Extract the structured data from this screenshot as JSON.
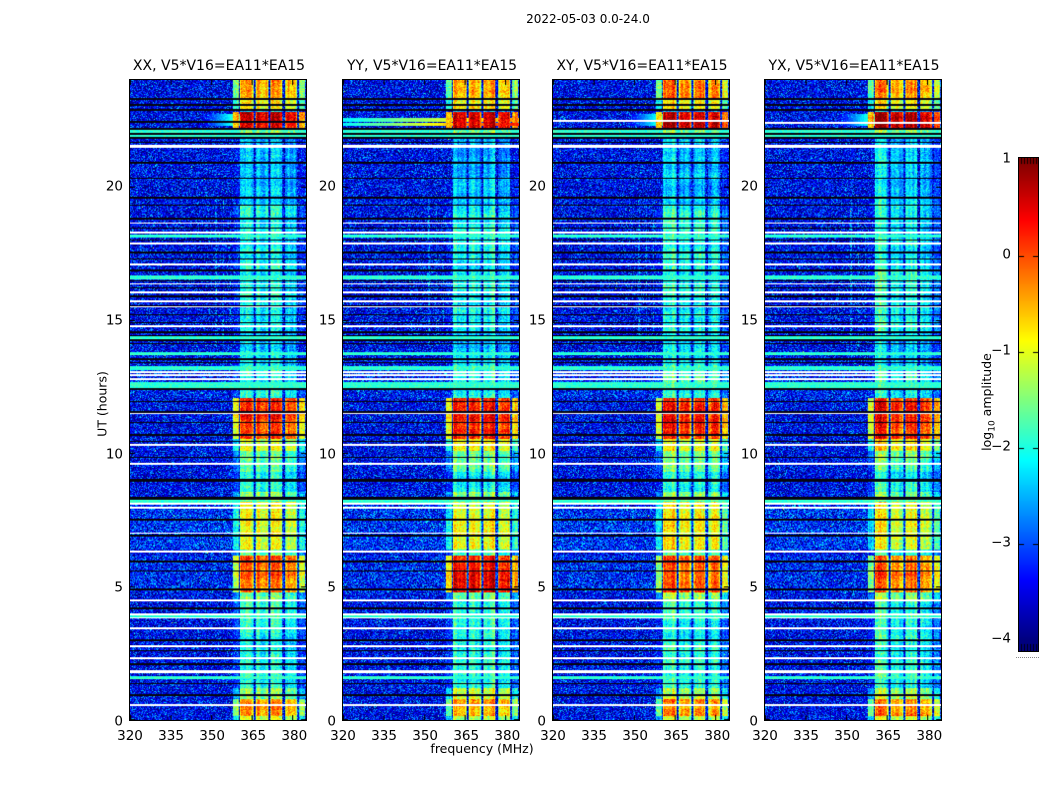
{
  "figure": {
    "suptitle": "2022-05-03 0.0-24.0"
  },
  "chart_data": {
    "type": "heatmap",
    "title": "2022-05-03 0.0-24.0",
    "xlabel": "frequency (MHz)",
    "ylabel": "UT (hours)",
    "x_range": [
      320,
      385
    ],
    "x_ticks": [
      320,
      335,
      350,
      365,
      380
    ],
    "y_range": [
      0,
      24
    ],
    "y_ticks": [
      0,
      5,
      10,
      15,
      20
    ],
    "value_range": [
      -4,
      1
    ],
    "colormap": "jet",
    "colorbar": {
      "label": "log10 amplitude",
      "label_parts": {
        "pre": "log",
        "sub": "10",
        "post": " amplitude"
      },
      "ticks": [
        1,
        0,
        -1,
        -2,
        -3,
        -4
      ]
    },
    "panels": [
      {
        "title": "XX, V5*V16=EA11*EA15",
        "seed": 101,
        "extras": [
          {
            "type": "blob",
            "t": [
              22.28,
              22.74
            ],
            "f": [
              347,
              360.4
            ],
            "level": -1.55,
            "fade": 0.15
          },
          {
            "type": "hline",
            "color": "black",
            "t": 22.42,
            "w": 2
          }
        ]
      },
      {
        "title": "YY, V5*V16=EA11*EA15",
        "seed": 202,
        "boost": [
          4.78,
          6.15,
          0.5
        ],
        "extras": [
          {
            "type": "streak",
            "t": [
              22.44,
              22.58
            ],
            "level": -0.35,
            "fade": 0.028
          },
          {
            "type": "streak",
            "t": [
              22.28,
              22.41
            ],
            "level": 0.3,
            "fade": 0.038
          }
        ]
      },
      {
        "title": "XY, V5*V16=EA11*EA15",
        "seed": 303,
        "extras": [
          {
            "type": "blob",
            "t": [
              22.28,
              22.74
            ],
            "f": [
              347,
              360.4
            ],
            "level": -1.7,
            "fade": 0.15
          },
          {
            "type": "hline",
            "color": "white",
            "t": 22.46,
            "w": 2
          }
        ]
      },
      {
        "title": "YX, V5*V16=EA11*EA15",
        "seed": 404,
        "extras": [
          {
            "type": "blob",
            "t": [
              22.28,
              22.74
            ],
            "f": [
              347,
              360.4
            ],
            "level": -1.6,
            "fade": 0.15
          },
          {
            "type": "hline",
            "color": "white",
            "t": 22.4,
            "w": 2
          }
        ]
      }
    ],
    "background": {
      "mean": -3.45,
      "sigma": 1.3,
      "speckle_prob": 0.004,
      "speckle_add": 1.2,
      "boosts": [
        [
          6.4,
          8.2,
          0.25
        ],
        [
          4.78,
          6.15,
          0.18
        ],
        [
          12.08,
          13.3,
          0.15
        ]
      ]
    },
    "rfi_band": {
      "substripes": [
        [
          357.8,
          360.2
        ],
        [
          360.4,
          365.6
        ],
        [
          366.4,
          371.0
        ],
        [
          371.8,
          376.4
        ],
        [
          377.2,
          381.8
        ],
        [
          382.6,
          384.8
        ]
      ],
      "stripe_offsets": [
        -1.1,
        0.15,
        -0.05,
        0.05,
        -0.12,
        -0.95
      ],
      "quiet_level": -2.55
    },
    "band_events": [
      [
        23.3,
        24.0,
        -0.4
      ],
      [
        22.85,
        23.25,
        -0.85
      ],
      [
        22.22,
        22.82,
        0.55
      ],
      [
        21.95,
        22.2,
        -1.55
      ],
      [
        19.3,
        21.9,
        -2.45
      ],
      [
        14.5,
        19.3,
        -2.1
      ],
      [
        13.3,
        14.5,
        -2.35
      ],
      [
        12.08,
        13.3,
        -2.05
      ],
      [
        10.55,
        12.08,
        0.15
      ],
      [
        10.1,
        10.55,
        -0.95
      ],
      [
        9.3,
        10.1,
        -1.7
      ],
      [
        8.55,
        9.3,
        -2.1
      ],
      [
        8.22,
        8.55,
        -1.5
      ],
      [
        6.4,
        8.2,
        -1.0
      ],
      [
        6.15,
        6.4,
        -1.8
      ],
      [
        4.78,
        6.15,
        -0.15
      ],
      [
        4.5,
        4.78,
        -1.6
      ],
      [
        3.8,
        4.5,
        -1.95
      ],
      [
        1.2,
        3.8,
        -2.05
      ],
      [
        0.78,
        1.2,
        -1.35
      ],
      [
        0.15,
        0.78,
        -0.45
      ],
      [
        0.0,
        0.15,
        -1.3
      ]
    ],
    "row_lines": {
      "white": [
        [
          21.5,
          3
        ],
        [
          18.65,
          1
        ],
        [
          18.28,
          2
        ],
        [
          17.87,
          2
        ],
        [
          17.08,
          2
        ],
        [
          16.34,
          1
        ],
        [
          16.04,
          2
        ],
        [
          15.7,
          2
        ],
        [
          15.48,
          1
        ],
        [
          14.77,
          2
        ],
        [
          13.05,
          2
        ],
        [
          12.92,
          2
        ],
        [
          12.78,
          2
        ],
        [
          11.5,
          1
        ],
        [
          10.3,
          2
        ],
        [
          9.6,
          2
        ],
        [
          8.1,
          2
        ],
        [
          7.97,
          2
        ],
        [
          7.0,
          1
        ],
        [
          6.3,
          2
        ],
        [
          4.5,
          2
        ],
        [
          3.95,
          2
        ],
        [
          3.85,
          1
        ],
        [
          3.45,
          2
        ],
        [
          2.75,
          2
        ],
        [
          2.3,
          2
        ],
        [
          1.85,
          2
        ],
        [
          1.78,
          1
        ],
        [
          0.55,
          2
        ]
      ],
      "black": [
        [
          23.28,
          2
        ],
        [
          23.05,
          2
        ],
        [
          22.88,
          2
        ],
        [
          22.18,
          2
        ],
        [
          21.98,
          2
        ],
        [
          21.82,
          2
        ],
        [
          21.68,
          1
        ],
        [
          20.9,
          2
        ],
        [
          20.3,
          1
        ],
        [
          19.6,
          2
        ],
        [
          19.3,
          1
        ],
        [
          18.8,
          2
        ],
        [
          18.45,
          1
        ],
        [
          18.0,
          1
        ],
        [
          17.55,
          2
        ],
        [
          17.3,
          1
        ],
        [
          16.85,
          2
        ],
        [
          16.45,
          1
        ],
        [
          16.2,
          1
        ],
        [
          15.9,
          2
        ],
        [
          15.55,
          1
        ],
        [
          15.2,
          1
        ],
        [
          14.9,
          1
        ],
        [
          14.55,
          2
        ],
        [
          14.4,
          1
        ],
        [
          14.25,
          2
        ],
        [
          14.1,
          1
        ],
        [
          13.55,
          2
        ],
        [
          13.4,
          1
        ],
        [
          12.42,
          2
        ],
        [
          11.95,
          1
        ],
        [
          11.55,
          2
        ],
        [
          11.15,
          1
        ],
        [
          10.7,
          2
        ],
        [
          10.45,
          1
        ],
        [
          9.85,
          1
        ],
        [
          9.0,
          3
        ],
        [
          8.3,
          3
        ],
        [
          7.5,
          2
        ],
        [
          6.9,
          2
        ],
        [
          5.95,
          2
        ],
        [
          5.6,
          1
        ],
        [
          4.9,
          2
        ],
        [
          4.2,
          2
        ],
        [
          3.0,
          2
        ],
        [
          2.6,
          1
        ],
        [
          2.1,
          2
        ],
        [
          1.35,
          1
        ],
        [
          0.95,
          2
        ]
      ],
      "cyan": [
        [
          22.08,
          4
        ],
        [
          21.92,
          3
        ],
        [
          18.15,
          3
        ],
        [
          16.6,
          4
        ],
        [
          14.32,
          3
        ],
        [
          13.75,
          3
        ],
        [
          13.2,
          4
        ],
        [
          12.62,
          3
        ],
        [
          12.5,
          3
        ],
        [
          8.2,
          3
        ],
        [
          3.9,
          3
        ],
        [
          1.6,
          3
        ]
      ]
    },
    "vertical_faint_lines": [
      {
        "f": 351.8,
        "t": [
          14.0,
          19.5
        ],
        "add": 0.55
      },
      {
        "f": 354.6,
        "t": [
          14.0,
          19.5
        ],
        "add": 0.5
      },
      {
        "f": 357.1,
        "t": [
          14.5,
          19.0
        ],
        "add": 0.4
      }
    ]
  }
}
